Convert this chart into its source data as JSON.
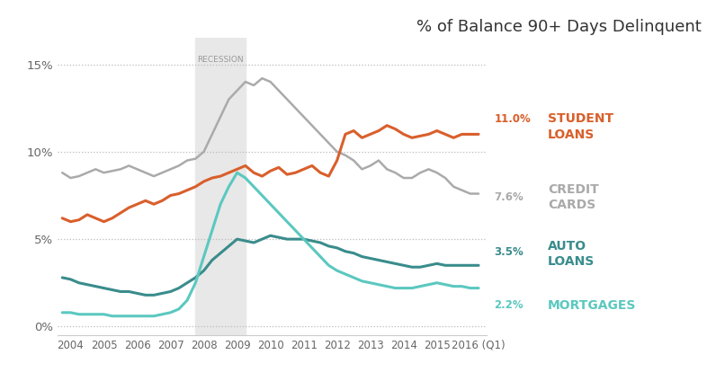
{
  "title": "% of Balance 90+ Days Delinquent",
  "recession_start": 2007.75,
  "recession_end": 2009.25,
  "recession_label": "RECESSION",
  "yticks": [
    0,
    5,
    10,
    15
  ],
  "ytick_labels": [
    "0%",
    "5%",
    "10%",
    "15%"
  ],
  "xlim": [
    2003.6,
    2016.5
  ],
  "ylim": [
    -0.5,
    16.5
  ],
  "background_color": "#ffffff",
  "student_loans": {
    "color": "#d95f2b",
    "label": "STUDENT\nLOANS",
    "end_value": "11.0%",
    "x": [
      2003.75,
      2004.0,
      2004.25,
      2004.5,
      2004.75,
      2005.0,
      2005.25,
      2005.5,
      2005.75,
      2006.0,
      2006.25,
      2006.5,
      2006.75,
      2007.0,
      2007.25,
      2007.5,
      2007.75,
      2008.0,
      2008.25,
      2008.5,
      2008.75,
      2009.0,
      2009.25,
      2009.5,
      2009.75,
      2010.0,
      2010.25,
      2010.5,
      2010.75,
      2011.0,
      2011.25,
      2011.5,
      2011.75,
      2012.0,
      2012.25,
      2012.5,
      2012.75,
      2013.0,
      2013.25,
      2013.5,
      2013.75,
      2014.0,
      2014.25,
      2014.5,
      2014.75,
      2015.0,
      2015.25,
      2015.5,
      2015.75,
      2016.0,
      2016.25
    ],
    "y": [
      6.2,
      6.0,
      6.1,
      6.4,
      6.2,
      6.0,
      6.2,
      6.5,
      6.8,
      7.0,
      7.2,
      7.0,
      7.2,
      7.5,
      7.6,
      7.8,
      8.0,
      8.3,
      8.5,
      8.6,
      8.8,
      9.0,
      9.2,
      8.8,
      8.6,
      8.9,
      9.1,
      8.7,
      8.8,
      9.0,
      9.2,
      8.8,
      8.6,
      9.5,
      11.0,
      11.2,
      10.8,
      11.0,
      11.2,
      11.5,
      11.3,
      11.0,
      10.8,
      10.9,
      11.0,
      11.2,
      11.0,
      10.8,
      11.0,
      11.0,
      11.0
    ]
  },
  "credit_cards": {
    "color": "#aaaaaa",
    "label": "CREDIT\nCARDS",
    "end_value": "7.6%",
    "x": [
      2003.75,
      2004.0,
      2004.25,
      2004.5,
      2004.75,
      2005.0,
      2005.25,
      2005.5,
      2005.75,
      2006.0,
      2006.25,
      2006.5,
      2006.75,
      2007.0,
      2007.25,
      2007.5,
      2007.75,
      2008.0,
      2008.25,
      2008.5,
      2008.75,
      2009.0,
      2009.25,
      2009.5,
      2009.75,
      2010.0,
      2010.25,
      2010.5,
      2010.75,
      2011.0,
      2011.25,
      2011.5,
      2011.75,
      2012.0,
      2012.25,
      2012.5,
      2012.75,
      2013.0,
      2013.25,
      2013.5,
      2013.75,
      2014.0,
      2014.25,
      2014.5,
      2014.75,
      2015.0,
      2015.25,
      2015.5,
      2015.75,
      2016.0,
      2016.25
    ],
    "y": [
      8.8,
      8.5,
      8.6,
      8.8,
      9.0,
      8.8,
      8.9,
      9.0,
      9.2,
      9.0,
      8.8,
      8.6,
      8.8,
      9.0,
      9.2,
      9.5,
      9.6,
      10.0,
      11.0,
      12.0,
      13.0,
      13.5,
      14.0,
      13.8,
      14.2,
      14.0,
      13.5,
      13.0,
      12.5,
      12.0,
      11.5,
      11.0,
      10.5,
      10.0,
      9.8,
      9.5,
      9.0,
      9.2,
      9.5,
      9.0,
      8.8,
      8.5,
      8.5,
      8.8,
      9.0,
      8.8,
      8.5,
      8.0,
      7.8,
      7.6,
      7.6
    ]
  },
  "auto_loans": {
    "color": "#3a8c8c",
    "label": "AUTO\nLOANS",
    "end_value": "3.5%",
    "x": [
      2003.75,
      2004.0,
      2004.25,
      2004.5,
      2004.75,
      2005.0,
      2005.25,
      2005.5,
      2005.75,
      2006.0,
      2006.25,
      2006.5,
      2006.75,
      2007.0,
      2007.25,
      2007.5,
      2007.75,
      2008.0,
      2008.25,
      2008.5,
      2008.75,
      2009.0,
      2009.25,
      2009.5,
      2009.75,
      2010.0,
      2010.25,
      2010.5,
      2010.75,
      2011.0,
      2011.25,
      2011.5,
      2011.75,
      2012.0,
      2012.25,
      2012.5,
      2012.75,
      2013.0,
      2013.25,
      2013.5,
      2013.75,
      2014.0,
      2014.25,
      2014.5,
      2014.75,
      2015.0,
      2015.25,
      2015.5,
      2015.75,
      2016.0,
      2016.25
    ],
    "y": [
      2.8,
      2.7,
      2.5,
      2.4,
      2.3,
      2.2,
      2.1,
      2.0,
      2.0,
      1.9,
      1.8,
      1.8,
      1.9,
      2.0,
      2.2,
      2.5,
      2.8,
      3.2,
      3.8,
      4.2,
      4.6,
      5.0,
      4.9,
      4.8,
      5.0,
      5.2,
      5.1,
      5.0,
      5.0,
      5.0,
      4.9,
      4.8,
      4.6,
      4.5,
      4.3,
      4.2,
      4.0,
      3.9,
      3.8,
      3.7,
      3.6,
      3.5,
      3.4,
      3.4,
      3.5,
      3.6,
      3.5,
      3.5,
      3.5,
      3.5,
      3.5
    ]
  },
  "mortgages": {
    "color": "#5bc8c0",
    "label": "MORTGAGES",
    "end_value": "2.2%",
    "x": [
      2003.75,
      2004.0,
      2004.25,
      2004.5,
      2004.75,
      2005.0,
      2005.25,
      2005.5,
      2005.75,
      2006.0,
      2006.25,
      2006.5,
      2006.75,
      2007.0,
      2007.25,
      2007.5,
      2007.75,
      2008.0,
      2008.25,
      2008.5,
      2008.75,
      2009.0,
      2009.25,
      2009.5,
      2009.75,
      2010.0,
      2010.25,
      2010.5,
      2010.75,
      2011.0,
      2011.25,
      2011.5,
      2011.75,
      2012.0,
      2012.25,
      2012.5,
      2012.75,
      2013.0,
      2013.25,
      2013.5,
      2013.75,
      2014.0,
      2014.25,
      2014.5,
      2014.75,
      2015.0,
      2015.25,
      2015.5,
      2015.75,
      2016.0,
      2016.25
    ],
    "y": [
      0.8,
      0.8,
      0.7,
      0.7,
      0.7,
      0.7,
      0.6,
      0.6,
      0.6,
      0.6,
      0.6,
      0.6,
      0.7,
      0.8,
      1.0,
      1.5,
      2.5,
      4.0,
      5.5,
      7.0,
      8.0,
      8.8,
      8.5,
      8.0,
      7.5,
      7.0,
      6.5,
      6.0,
      5.5,
      5.0,
      4.5,
      4.0,
      3.5,
      3.2,
      3.0,
      2.8,
      2.6,
      2.5,
      2.4,
      2.3,
      2.2,
      2.2,
      2.2,
      2.3,
      2.4,
      2.5,
      2.4,
      2.3,
      2.3,
      2.2,
      2.2
    ]
  },
  "dotted_line_color": "#bbbbbb",
  "axis_color": "#cccccc",
  "tick_color": "#666666",
  "title_fontsize": 13
}
